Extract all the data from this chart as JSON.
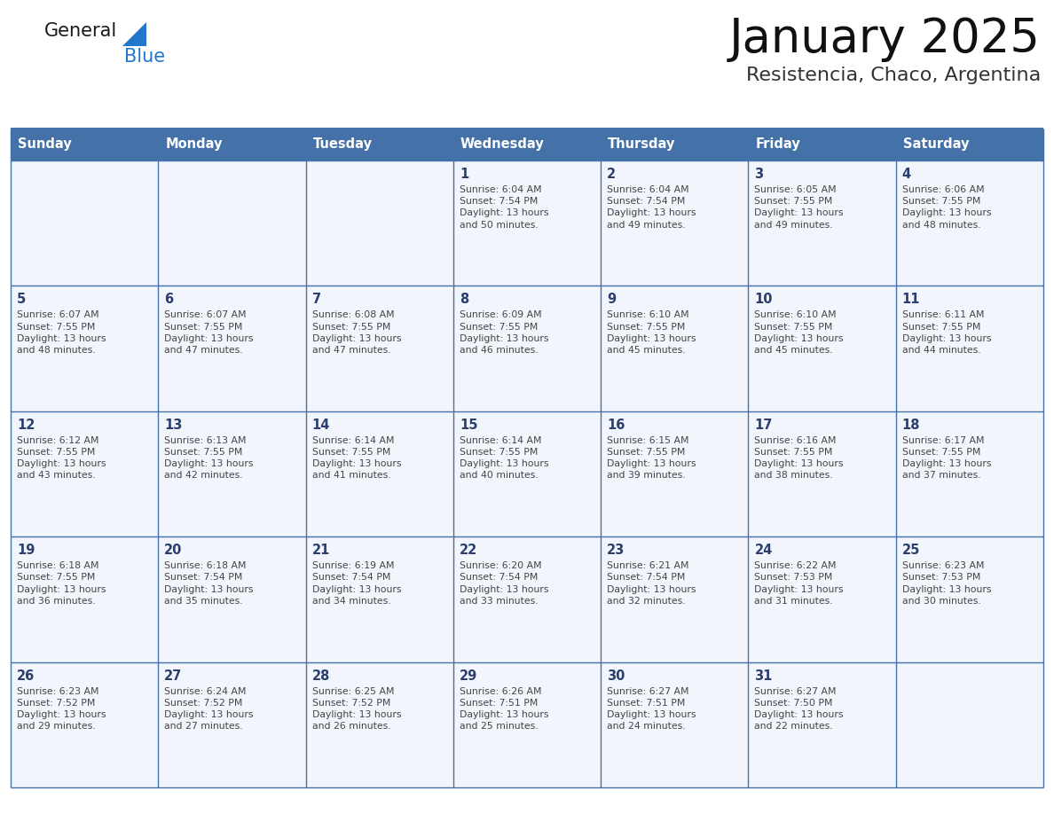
{
  "title": "January 2025",
  "subtitle": "Resistencia, Chaco, Argentina",
  "days_of_week": [
    "Sunday",
    "Monday",
    "Tuesday",
    "Wednesday",
    "Thursday",
    "Friday",
    "Saturday"
  ],
  "header_bg": "#4472a8",
  "header_text": "#ffffff",
  "cell_bg": "#f2f5fb",
  "cell_bg_alt": "#ffffff",
  "grid_color": "#4472a8",
  "day_number_color": "#2a3f6e",
  "text_color": "#444444",
  "logo_general_color": "#1a1a1a",
  "logo_blue_color": "#2277cc",
  "weeks": [
    {
      "days": [
        {
          "date": null,
          "info": null
        },
        {
          "date": null,
          "info": null
        },
        {
          "date": null,
          "info": null
        },
        {
          "date": 1,
          "info": "Sunrise: 6:04 AM\nSunset: 7:54 PM\nDaylight: 13 hours\nand 50 minutes."
        },
        {
          "date": 2,
          "info": "Sunrise: 6:04 AM\nSunset: 7:54 PM\nDaylight: 13 hours\nand 49 minutes."
        },
        {
          "date": 3,
          "info": "Sunrise: 6:05 AM\nSunset: 7:55 PM\nDaylight: 13 hours\nand 49 minutes."
        },
        {
          "date": 4,
          "info": "Sunrise: 6:06 AM\nSunset: 7:55 PM\nDaylight: 13 hours\nand 48 minutes."
        }
      ]
    },
    {
      "days": [
        {
          "date": 5,
          "info": "Sunrise: 6:07 AM\nSunset: 7:55 PM\nDaylight: 13 hours\nand 48 minutes."
        },
        {
          "date": 6,
          "info": "Sunrise: 6:07 AM\nSunset: 7:55 PM\nDaylight: 13 hours\nand 47 minutes."
        },
        {
          "date": 7,
          "info": "Sunrise: 6:08 AM\nSunset: 7:55 PM\nDaylight: 13 hours\nand 47 minutes."
        },
        {
          "date": 8,
          "info": "Sunrise: 6:09 AM\nSunset: 7:55 PM\nDaylight: 13 hours\nand 46 minutes."
        },
        {
          "date": 9,
          "info": "Sunrise: 6:10 AM\nSunset: 7:55 PM\nDaylight: 13 hours\nand 45 minutes."
        },
        {
          "date": 10,
          "info": "Sunrise: 6:10 AM\nSunset: 7:55 PM\nDaylight: 13 hours\nand 45 minutes."
        },
        {
          "date": 11,
          "info": "Sunrise: 6:11 AM\nSunset: 7:55 PM\nDaylight: 13 hours\nand 44 minutes."
        }
      ]
    },
    {
      "days": [
        {
          "date": 12,
          "info": "Sunrise: 6:12 AM\nSunset: 7:55 PM\nDaylight: 13 hours\nand 43 minutes."
        },
        {
          "date": 13,
          "info": "Sunrise: 6:13 AM\nSunset: 7:55 PM\nDaylight: 13 hours\nand 42 minutes."
        },
        {
          "date": 14,
          "info": "Sunrise: 6:14 AM\nSunset: 7:55 PM\nDaylight: 13 hours\nand 41 minutes."
        },
        {
          "date": 15,
          "info": "Sunrise: 6:14 AM\nSunset: 7:55 PM\nDaylight: 13 hours\nand 40 minutes."
        },
        {
          "date": 16,
          "info": "Sunrise: 6:15 AM\nSunset: 7:55 PM\nDaylight: 13 hours\nand 39 minutes."
        },
        {
          "date": 17,
          "info": "Sunrise: 6:16 AM\nSunset: 7:55 PM\nDaylight: 13 hours\nand 38 minutes."
        },
        {
          "date": 18,
          "info": "Sunrise: 6:17 AM\nSunset: 7:55 PM\nDaylight: 13 hours\nand 37 minutes."
        }
      ]
    },
    {
      "days": [
        {
          "date": 19,
          "info": "Sunrise: 6:18 AM\nSunset: 7:55 PM\nDaylight: 13 hours\nand 36 minutes."
        },
        {
          "date": 20,
          "info": "Sunrise: 6:18 AM\nSunset: 7:54 PM\nDaylight: 13 hours\nand 35 minutes."
        },
        {
          "date": 21,
          "info": "Sunrise: 6:19 AM\nSunset: 7:54 PM\nDaylight: 13 hours\nand 34 minutes."
        },
        {
          "date": 22,
          "info": "Sunrise: 6:20 AM\nSunset: 7:54 PM\nDaylight: 13 hours\nand 33 minutes."
        },
        {
          "date": 23,
          "info": "Sunrise: 6:21 AM\nSunset: 7:54 PM\nDaylight: 13 hours\nand 32 minutes."
        },
        {
          "date": 24,
          "info": "Sunrise: 6:22 AM\nSunset: 7:53 PM\nDaylight: 13 hours\nand 31 minutes."
        },
        {
          "date": 25,
          "info": "Sunrise: 6:23 AM\nSunset: 7:53 PM\nDaylight: 13 hours\nand 30 minutes."
        }
      ]
    },
    {
      "days": [
        {
          "date": 26,
          "info": "Sunrise: 6:23 AM\nSunset: 7:52 PM\nDaylight: 13 hours\nand 29 minutes."
        },
        {
          "date": 27,
          "info": "Sunrise: 6:24 AM\nSunset: 7:52 PM\nDaylight: 13 hours\nand 27 minutes."
        },
        {
          "date": 28,
          "info": "Sunrise: 6:25 AM\nSunset: 7:52 PM\nDaylight: 13 hours\nand 26 minutes."
        },
        {
          "date": 29,
          "info": "Sunrise: 6:26 AM\nSunset: 7:51 PM\nDaylight: 13 hours\nand 25 minutes."
        },
        {
          "date": 30,
          "info": "Sunrise: 6:27 AM\nSunset: 7:51 PM\nDaylight: 13 hours\nand 24 minutes."
        },
        {
          "date": 31,
          "info": "Sunrise: 6:27 AM\nSunset: 7:50 PM\nDaylight: 13 hours\nand 22 minutes."
        },
        {
          "date": null,
          "info": null
        }
      ]
    }
  ]
}
